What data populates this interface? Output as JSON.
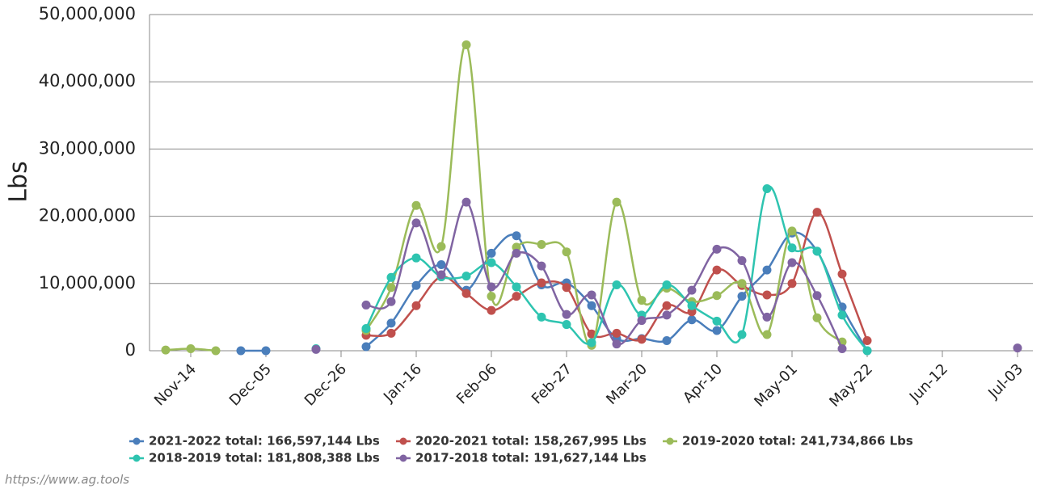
{
  "chart_data": {
    "type": "line",
    "y_label": "Lbs",
    "credit": "https://www.ag.tools",
    "categories": [
      null,
      "Nov-14",
      null,
      null,
      "Dec-05",
      null,
      null,
      "Dec-26",
      null,
      null,
      "Jan-16",
      null,
      null,
      "Feb-06",
      null,
      null,
      "Feb-27",
      null,
      null,
      "Mar-20",
      null,
      null,
      "Apr-10",
      null,
      null,
      "May-01",
      null,
      null,
      "May-22",
      null,
      null,
      "Jun-12",
      null,
      null,
      "Jul-03"
    ],
    "ylim": [
      0,
      50000000
    ],
    "yticks": [
      {
        "value": 0,
        "label": "0"
      },
      {
        "value": 10000000,
        "label": "10,000,000"
      },
      {
        "value": 20000000,
        "label": "20,000,000"
      },
      {
        "value": 30000000,
        "label": "30,000,000"
      },
      {
        "value": 40000000,
        "label": "40,000,000"
      },
      {
        "value": 50000000,
        "label": "50,000,000"
      }
    ],
    "grid": true,
    "legend": "bottom",
    "series": [
      {
        "name": "2021-2022 total: 166,597,144 Lbs",
        "color": "#4a7ebb",
        "values": [
          null,
          null,
          null,
          0,
          0,
          null,
          null,
          null,
          600000,
          4100000,
          9700000,
          12800000,
          9000000,
          14500000,
          17100000,
          9800000,
          10100000,
          6700000,
          1800000,
          1800000,
          1500000,
          4600000,
          3000000,
          8100000,
          12000000,
          17500000,
          14800000,
          6500000,
          0,
          null,
          null,
          null,
          null,
          null,
          null
        ]
      },
      {
        "name": "2020-2021 total: 158,267,995 Lbs",
        "color": "#c0504d",
        "values": [
          null,
          null,
          null,
          null,
          null,
          null,
          null,
          null,
          2300000,
          2600000,
          6700000,
          11000000,
          8500000,
          6000000,
          8100000,
          10100000,
          9400000,
          2500000,
          2600000,
          1700000,
          6700000,
          5800000,
          12000000,
          9700000,
          8300000,
          10000000,
          20600000,
          11400000,
          1500000,
          null,
          null,
          null,
          null,
          null,
          null
        ]
      },
      {
        "name": "2019-2020 total: 241,734,866 Lbs",
        "color": "#9bbb59",
        "values": [
          100000,
          300000,
          0,
          null,
          null,
          null,
          null,
          null,
          3000000,
          9400000,
          21600000,
          15500000,
          45500000,
          8100000,
          15400000,
          15800000,
          14700000,
          800000,
          22100000,
          7500000,
          9300000,
          7300000,
          8200000,
          10000000,
          2400000,
          17800000,
          4900000,
          1300000,
          null,
          null,
          null,
          null,
          null,
          null,
          null
        ]
      },
      {
        "name": "2018-2019 total: 181,808,388 Lbs",
        "color": "#2ec4b0",
        "values": [
          null,
          null,
          null,
          null,
          null,
          null,
          300000,
          null,
          3300000,
          10900000,
          13800000,
          11000000,
          11100000,
          13100000,
          9500000,
          5000000,
          3900000,
          1200000,
          9800000,
          5300000,
          9800000,
          6700000,
          4400000,
          2400000,
          24100000,
          15300000,
          14800000,
          5300000,
          0,
          null,
          null,
          null,
          null,
          null,
          null
        ]
      },
      {
        "name": "2017-2018 total: 191,627,144 Lbs",
        "color": "#8064a2",
        "values": [
          null,
          null,
          null,
          null,
          null,
          null,
          200000,
          null,
          6800000,
          7300000,
          19000000,
          11300000,
          22100000,
          9500000,
          14500000,
          12600000,
          5400000,
          8300000,
          1000000,
          4500000,
          5300000,
          9000000,
          15100000,
          13400000,
          5000000,
          13100000,
          8200000,
          300000,
          null,
          null,
          null,
          null,
          null,
          null,
          400000
        ]
      }
    ]
  }
}
